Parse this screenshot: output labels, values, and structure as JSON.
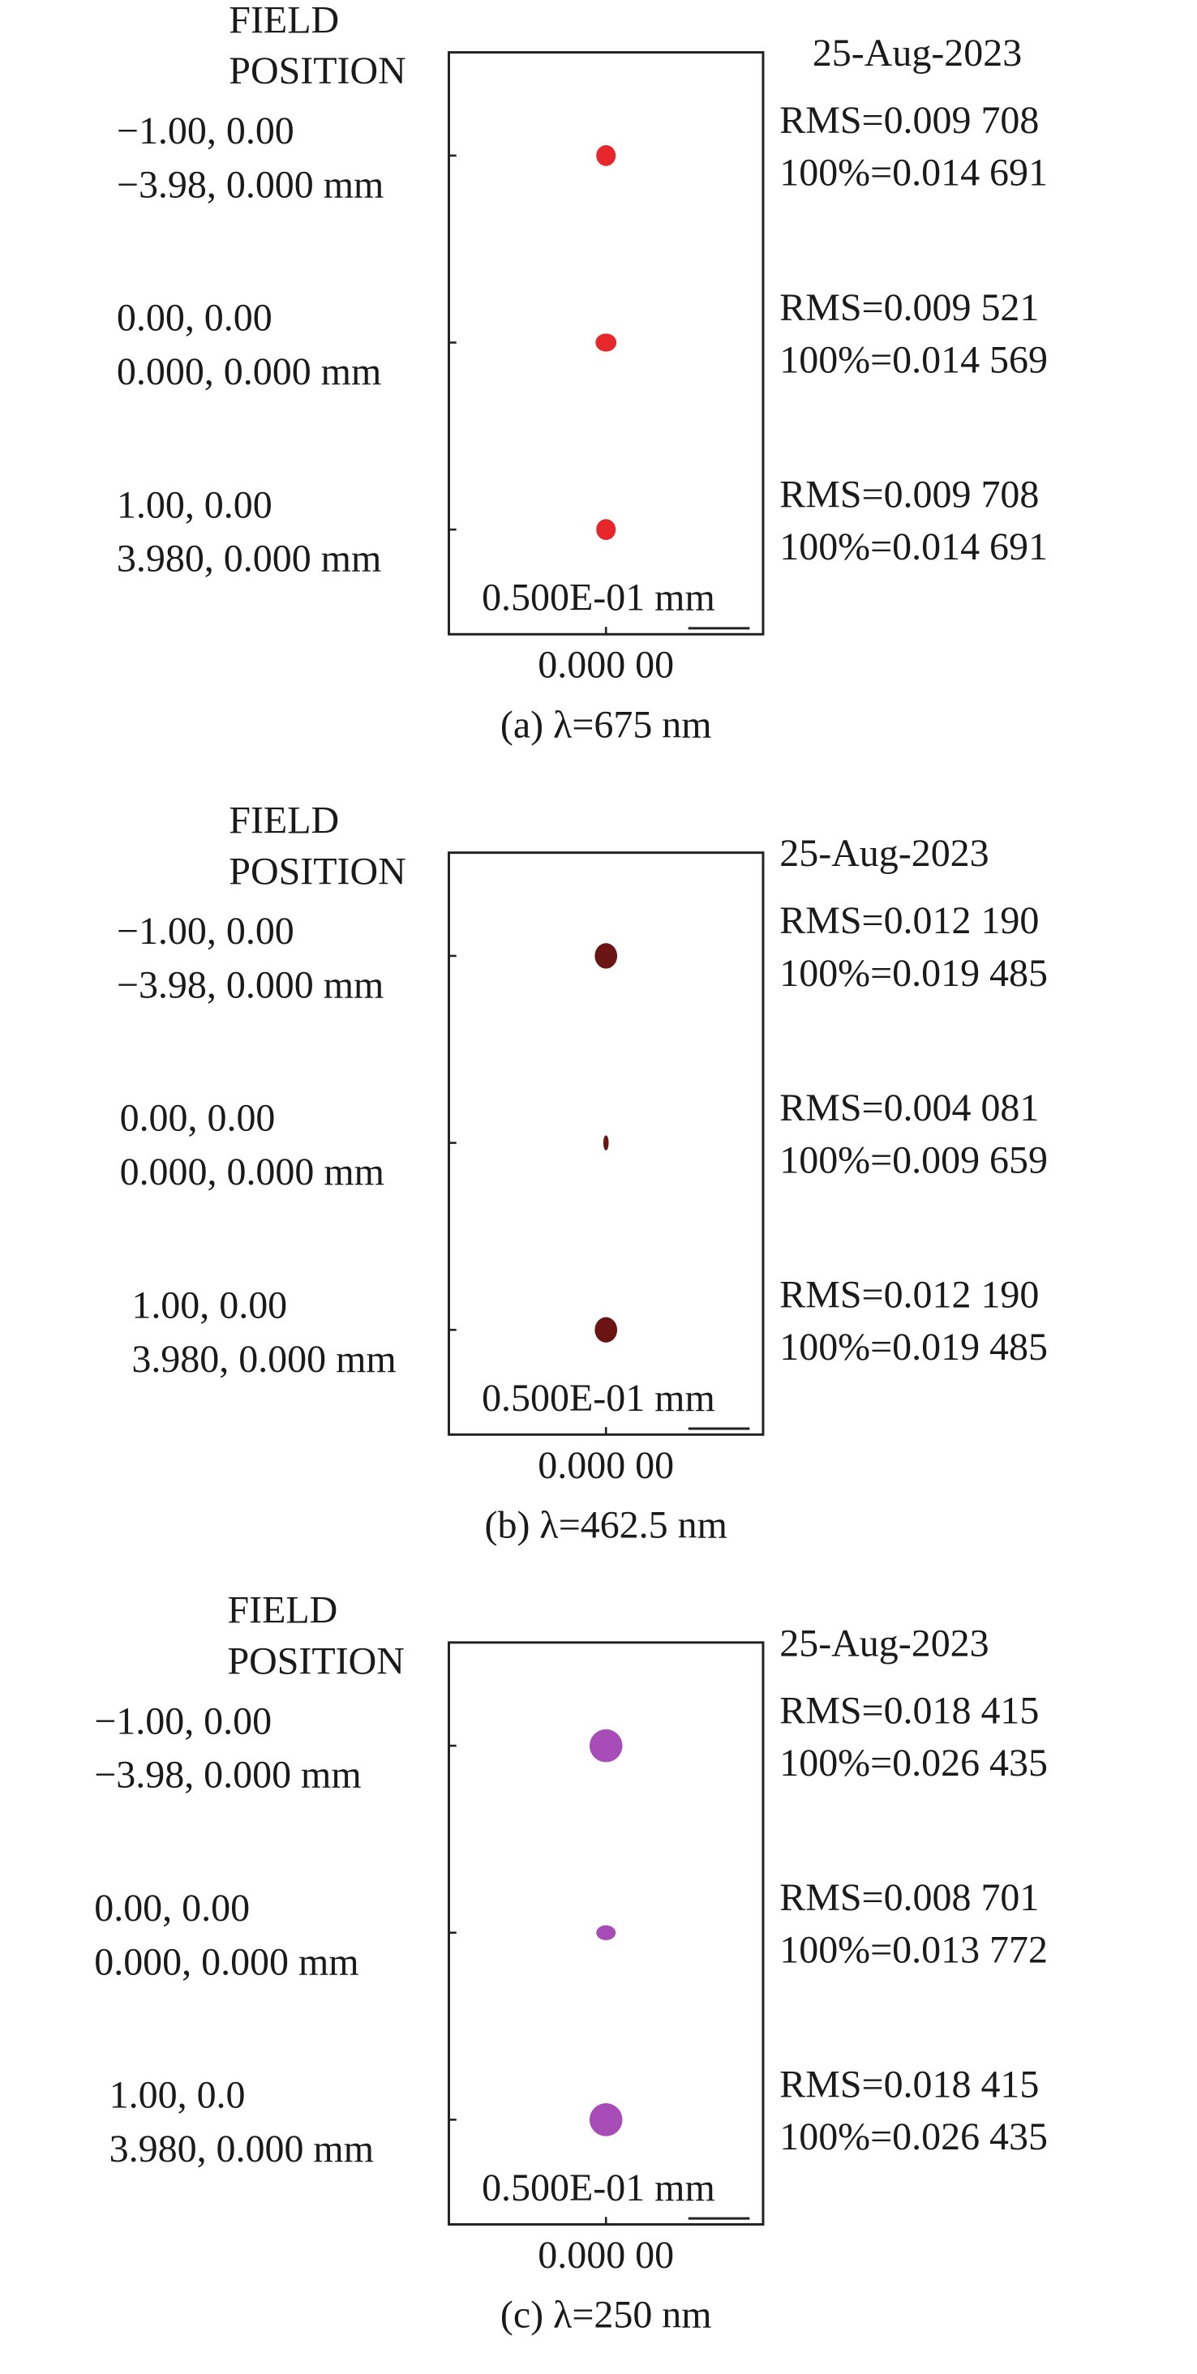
{
  "panels": [
    {
      "header": [
        "FIELD",
        "POSITION"
      ],
      "date": "25-Aug-2023",
      "fields": [
        {
          "lines": [
            "−1.00, 0.00",
            "−3.98, 0.000 mm"
          ],
          "rms": "RMS=0.009 708",
          "full": "100%=0.014 691"
        },
        {
          "lines": [
            "0.00, 0.00",
            "0.000, 0.000 mm"
          ],
          "rms": "RMS=0.009 521",
          "full": "100%=0.014 569"
        },
        {
          "lines": [
            "1.00, 0.00",
            "3.980, 0.000 mm"
          ],
          "rms": "RMS=0.009 708",
          "full": "100%=0.014 691"
        }
      ],
      "scale_label": "0.500E-01 mm",
      "axis_label": "0.000 00",
      "caption": "(a) λ=675 nm"
    },
    {
      "header": [
        "FIELD",
        "POSITION"
      ],
      "date": "25-Aug-2023",
      "fields": [
        {
          "lines": [
            "−1.00, 0.00",
            "−3.98, 0.000 mm"
          ],
          "rms": "RMS=0.012 190",
          "full": "100%=0.019 485"
        },
        {
          "lines": [
            "0.00, 0.00",
            "0.000, 0.000 mm"
          ],
          "rms": "RMS=0.004 081",
          "full": "100%=0.009 659"
        },
        {
          "lines": [
            "1.00, 0.00",
            "3.980, 0.000 mm"
          ],
          "rms": "RMS=0.012 190",
          "full": "100%=0.019 485"
        }
      ],
      "scale_label": "0.500E-01 mm",
      "axis_label": "0.000 00",
      "caption": "(b) λ=462.5 nm"
    },
    {
      "header": [
        "FIELD",
        "POSITION"
      ],
      "date": "25-Aug-2023",
      "fields": [
        {
          "lines": [
            "−1.00, 0.00",
            "−3.98, 0.000 mm"
          ],
          "rms": "RMS=0.018 415",
          "full": "100%=0.026 435"
        },
        {
          "lines": [
            "0.00, 0.00",
            "0.000, 0.000 mm"
          ],
          "rms": "RMS=0.008 701",
          "full": "100%=0.013 772"
        },
        {
          "lines": [
            "1.00, 0.0",
            "3.980, 0.000 mm"
          ],
          "rms": "RMS=0.018 415",
          "full": "100%=0.026 435"
        }
      ],
      "scale_label": "0.500E-01 mm",
      "axis_label": "0.000 00",
      "caption": "(c) λ=250 nm"
    }
  ]
}
